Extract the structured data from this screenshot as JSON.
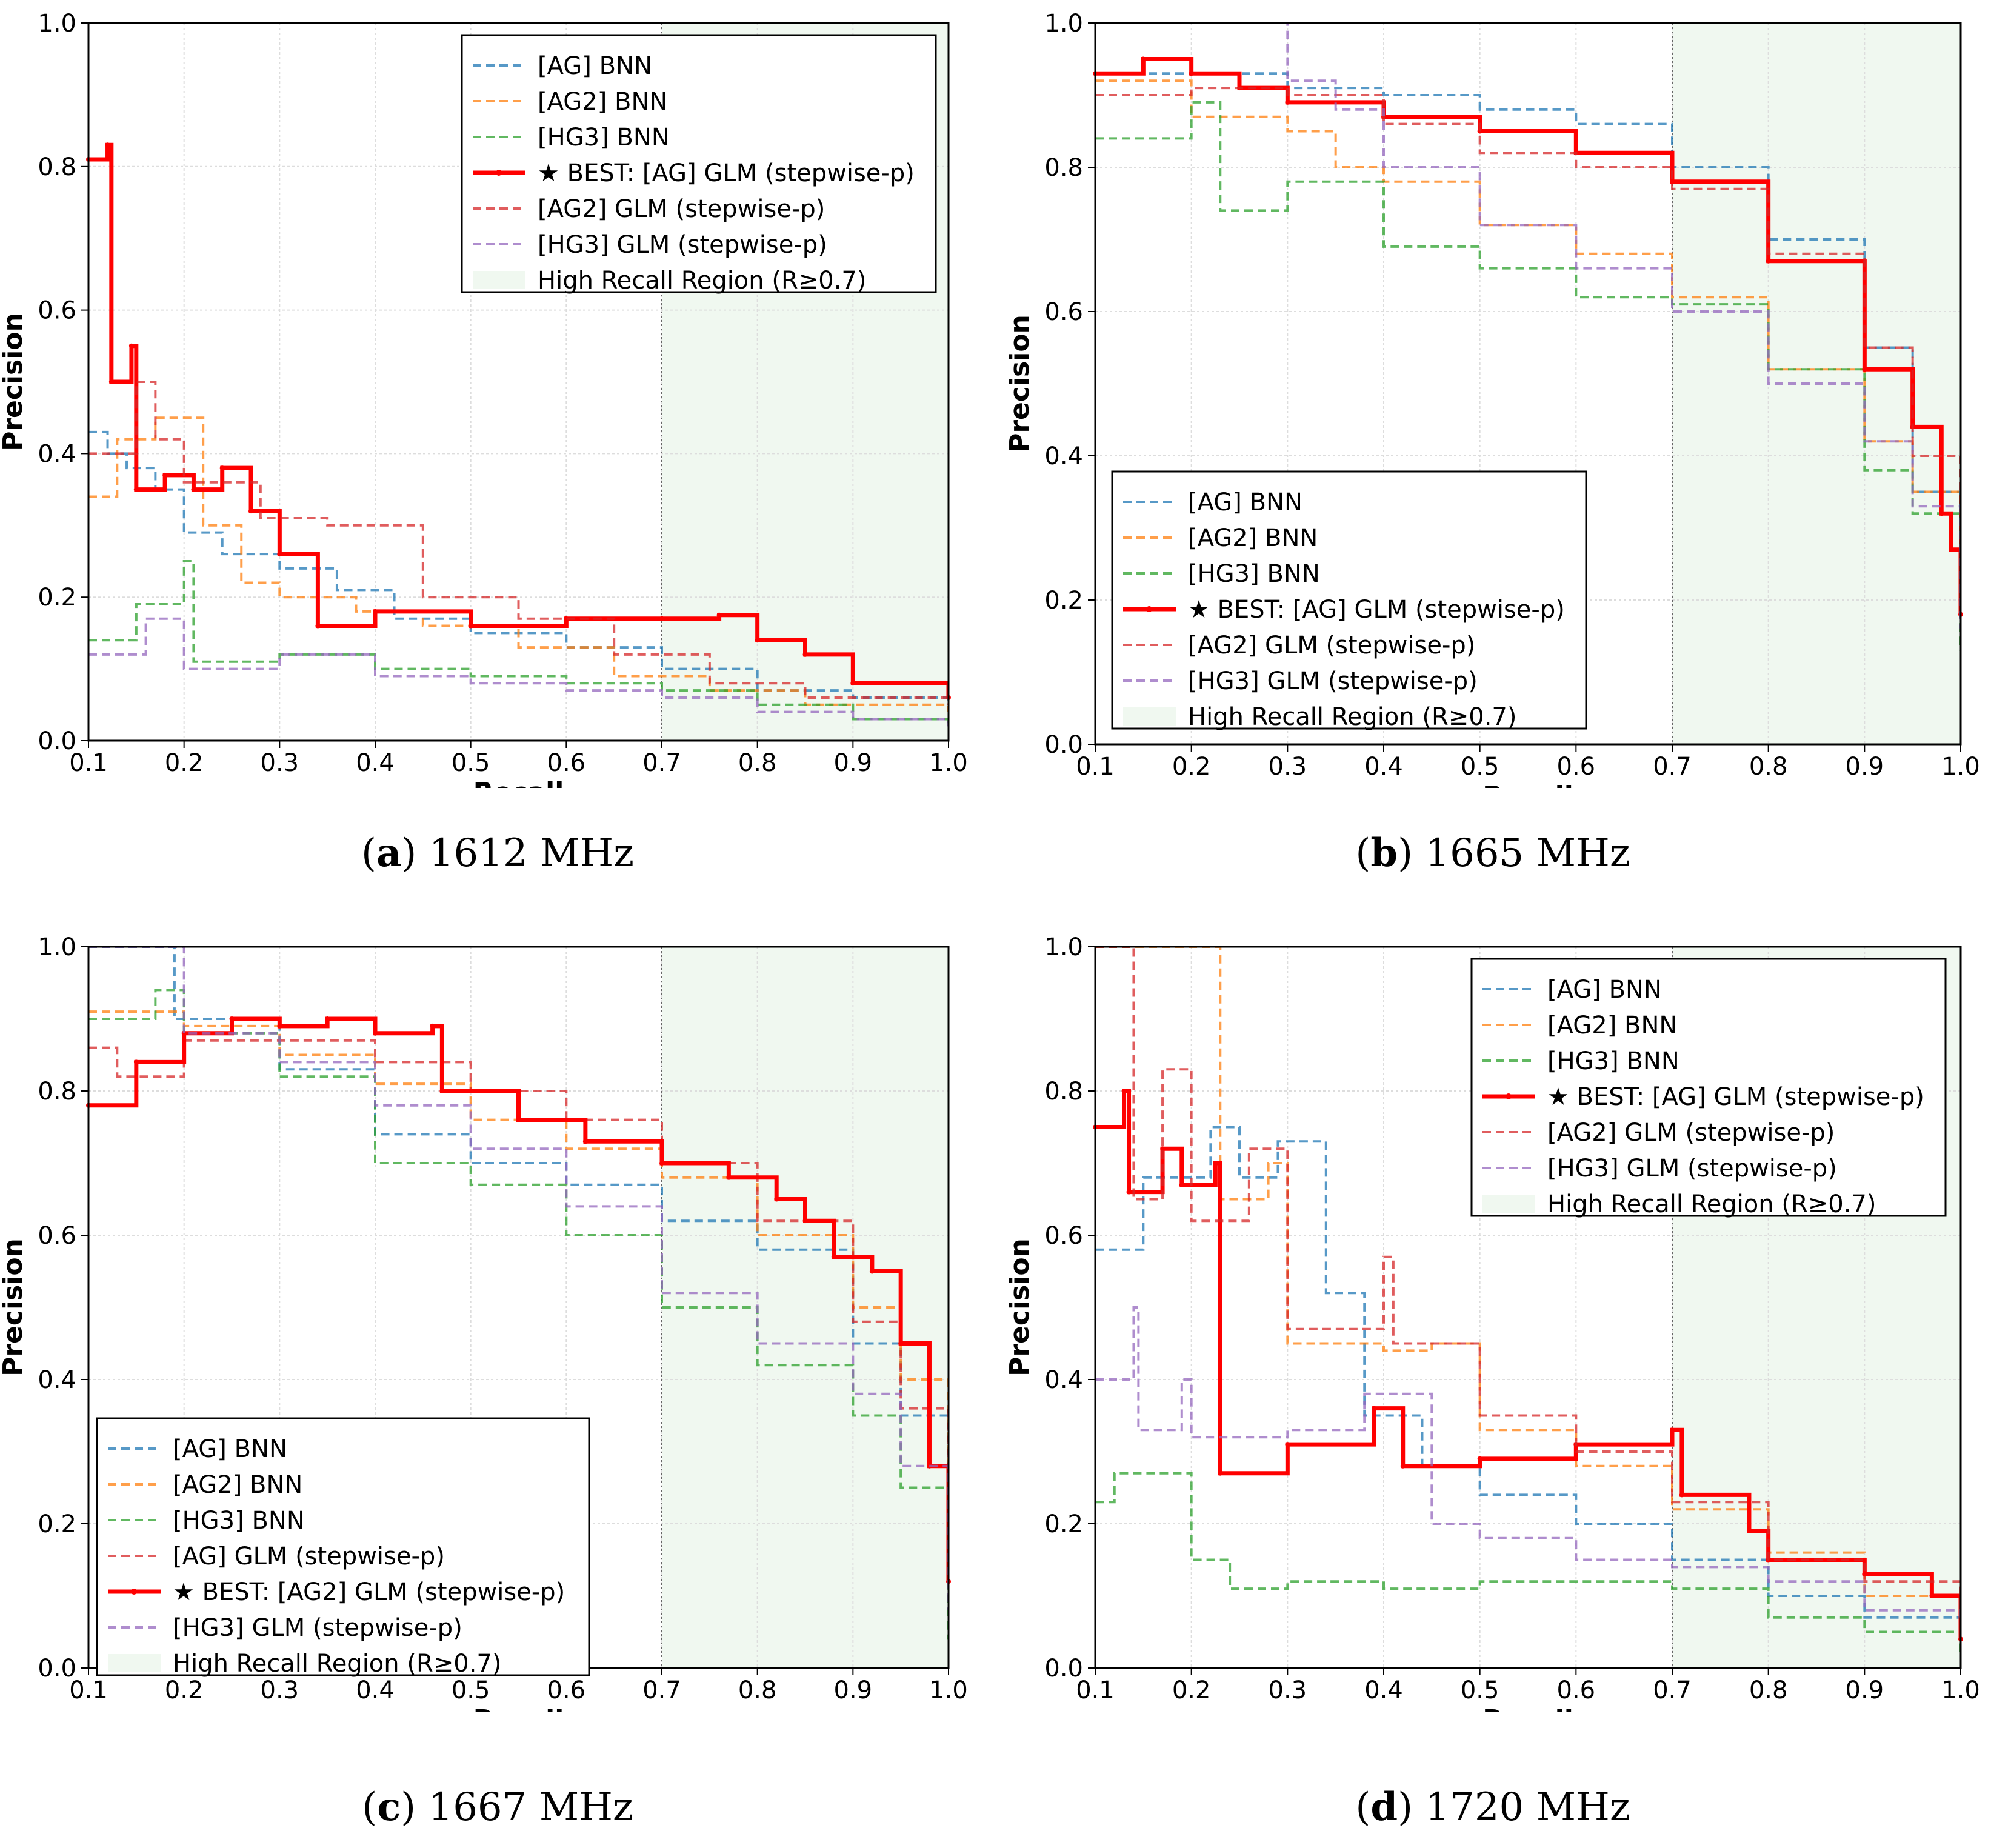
{
  "chart_data": [
    {
      "type": "line",
      "panel": "a",
      "caption_letter": "a",
      "caption_text": "1612 MHz",
      "xlabel": "Recall",
      "ylabel": "Precision",
      "xlim": [
        0.1,
        1.0
      ],
      "ylim": [
        0.0,
        1.0
      ],
      "xticks": [
        "0.1",
        "0.2",
        "0.3",
        "0.4",
        "0.5",
        "0.6",
        "0.7",
        "0.8",
        "0.9",
        "1.0"
      ],
      "yticks": [
        "0.0",
        "0.2",
        "0.4",
        "0.6",
        "0.8",
        "1.0"
      ],
      "grid": true,
      "high_recall_threshold": 0.7,
      "legend_position": "top-right",
      "series": [
        {
          "name": "[AG] BNN",
          "color": "#1f77b4",
          "dashed": true,
          "best": false,
          "x": [
            0.1,
            0.12,
            0.14,
            0.17,
            0.2,
            0.24,
            0.3,
            0.36,
            0.42,
            0.5,
            0.6,
            0.7,
            0.8,
            0.9,
            1.0
          ],
          "y": [
            0.43,
            0.4,
            0.38,
            0.35,
            0.29,
            0.26,
            0.24,
            0.21,
            0.17,
            0.15,
            0.13,
            0.1,
            0.07,
            0.06,
            0.05
          ]
        },
        {
          "name": "[AG2] BNN",
          "color": "#ff7f0e",
          "dashed": true,
          "best": false,
          "x": [
            0.1,
            0.13,
            0.17,
            0.22,
            0.26,
            0.3,
            0.38,
            0.45,
            0.55,
            0.65,
            0.75,
            0.85,
            1.0
          ],
          "y": [
            0.34,
            0.42,
            0.45,
            0.3,
            0.22,
            0.2,
            0.18,
            0.16,
            0.13,
            0.09,
            0.07,
            0.05,
            0.04
          ]
        },
        {
          "name": "[HG3] BNN",
          "color": "#2ca02c",
          "dashed": true,
          "best": false,
          "x": [
            0.1,
            0.15,
            0.2,
            0.21,
            0.3,
            0.4,
            0.5,
            0.6,
            0.7,
            0.8,
            0.9,
            1.0
          ],
          "y": [
            0.14,
            0.19,
            0.25,
            0.11,
            0.12,
            0.1,
            0.09,
            0.08,
            0.07,
            0.05,
            0.03,
            0.02
          ]
        },
        {
          "name": "★ BEST: [AG] GLM (stepwise-p)",
          "color": "#ff0000",
          "dashed": false,
          "best": true,
          "x": [
            0.1,
            0.12,
            0.124,
            0.145,
            0.15,
            0.18,
            0.21,
            0.24,
            0.27,
            0.3,
            0.34,
            0.4,
            0.5,
            0.6,
            0.7,
            0.76,
            0.8,
            0.85,
            0.9,
            1.0
          ],
          "y": [
            0.81,
            0.83,
            0.5,
            0.55,
            0.35,
            0.37,
            0.35,
            0.38,
            0.32,
            0.26,
            0.16,
            0.18,
            0.16,
            0.17,
            0.17,
            0.175,
            0.14,
            0.12,
            0.08,
            0.06
          ]
        },
        {
          "name": "[AG2] GLM (stepwise-p)",
          "color": "#d62728",
          "dashed": true,
          "best": false,
          "x": [
            0.1,
            0.15,
            0.17,
            0.2,
            0.28,
            0.35,
            0.45,
            0.55,
            0.65,
            0.75,
            0.85,
            1.0
          ],
          "y": [
            0.4,
            0.5,
            0.42,
            0.36,
            0.31,
            0.3,
            0.2,
            0.17,
            0.12,
            0.08,
            0.06,
            0.05
          ]
        },
        {
          "name": "[HG3] GLM (stepwise-p)",
          "color": "#9467bd",
          "dashed": true,
          "best": false,
          "x": [
            0.1,
            0.16,
            0.2,
            0.3,
            0.4,
            0.5,
            0.6,
            0.7,
            0.8,
            0.9,
            1.0
          ],
          "y": [
            0.12,
            0.17,
            0.1,
            0.12,
            0.09,
            0.08,
            0.07,
            0.06,
            0.04,
            0.03,
            0.02
          ]
        }
      ]
    },
    {
      "type": "line",
      "panel": "b",
      "caption_letter": "b",
      "caption_text": "1665 MHz",
      "xlabel": "Recall",
      "ylabel": "Precision",
      "xlim": [
        0.1,
        1.0
      ],
      "ylim": [
        0.0,
        1.0
      ],
      "xticks": [
        "0.1",
        "0.2",
        "0.3",
        "0.4",
        "0.5",
        "0.6",
        "0.7",
        "0.8",
        "0.9",
        "1.0"
      ],
      "yticks": [
        "0.0",
        "0.2",
        "0.4",
        "0.6",
        "0.8",
        "1.0"
      ],
      "grid": true,
      "high_recall_threshold": 0.7,
      "legend_position": "lower-left",
      "series": [
        {
          "name": "[AG] BNN",
          "color": "#1f77b4",
          "dashed": true,
          "best": false,
          "x": [
            0.1,
            0.2,
            0.3,
            0.4,
            0.5,
            0.6,
            0.7,
            0.8,
            0.9,
            0.95,
            1.0
          ],
          "y": [
            0.93,
            0.93,
            0.91,
            0.9,
            0.88,
            0.86,
            0.8,
            0.7,
            0.55,
            0.35,
            0.18
          ]
        },
        {
          "name": "[AG2] BNN",
          "color": "#ff7f0e",
          "dashed": true,
          "best": false,
          "x": [
            0.1,
            0.2,
            0.3,
            0.35,
            0.4,
            0.5,
            0.6,
            0.7,
            0.8,
            0.9,
            0.95,
            1.0
          ],
          "y": [
            0.92,
            0.87,
            0.85,
            0.8,
            0.78,
            0.72,
            0.68,
            0.62,
            0.52,
            0.42,
            0.35,
            0.2
          ]
        },
        {
          "name": "[HG3] BNN",
          "color": "#2ca02c",
          "dashed": true,
          "best": false,
          "x": [
            0.1,
            0.2,
            0.23,
            0.3,
            0.4,
            0.5,
            0.6,
            0.7,
            0.8,
            0.9,
            0.95,
            1.0
          ],
          "y": [
            0.84,
            0.89,
            0.74,
            0.78,
            0.69,
            0.66,
            0.62,
            0.61,
            0.52,
            0.38,
            0.32,
            0.13
          ]
        },
        {
          "name": "★ BEST: [AG] GLM (stepwise-p)",
          "color": "#ff0000",
          "dashed": false,
          "best": true,
          "x": [
            0.1,
            0.15,
            0.2,
            0.25,
            0.3,
            0.4,
            0.5,
            0.6,
            0.7,
            0.8,
            0.9,
            0.95,
            0.98,
            0.99,
            1.0
          ],
          "y": [
            0.93,
            0.95,
            0.93,
            0.91,
            0.89,
            0.87,
            0.85,
            0.82,
            0.78,
            0.67,
            0.52,
            0.44,
            0.32,
            0.27,
            0.18
          ]
        },
        {
          "name": "[AG2] GLM (stepwise-p)",
          "color": "#d62728",
          "dashed": true,
          "best": false,
          "x": [
            0.1,
            0.2,
            0.3,
            0.4,
            0.5,
            0.6,
            0.7,
            0.8,
            0.9,
            0.95,
            1.0
          ],
          "y": [
            0.9,
            0.91,
            0.9,
            0.86,
            0.82,
            0.8,
            0.77,
            0.68,
            0.55,
            0.4,
            0.2
          ]
        },
        {
          "name": "[HG3] GLM (stepwise-p)",
          "color": "#9467bd",
          "dashed": true,
          "best": false,
          "x": [
            0.1,
            0.15,
            0.2,
            0.3,
            0.35,
            0.4,
            0.5,
            0.6,
            0.7,
            0.8,
            0.9,
            0.95,
            1.0
          ],
          "y": [
            1.0,
            1.0,
            1.0,
            0.92,
            0.88,
            0.8,
            0.72,
            0.66,
            0.6,
            0.5,
            0.42,
            0.33,
            0.16
          ]
        }
      ]
    },
    {
      "type": "line",
      "panel": "c",
      "caption_letter": "c",
      "caption_text": "1667 MHz",
      "xlabel": "Recall",
      "ylabel": "Precision",
      "xlim": [
        0.1,
        1.0
      ],
      "ylim": [
        0.0,
        1.0
      ],
      "xticks": [
        "0.1",
        "0.2",
        "0.3",
        "0.4",
        "0.5",
        "0.6",
        "0.7",
        "0.8",
        "0.9",
        "1.0"
      ],
      "yticks": [
        "0.0",
        "0.2",
        "0.4",
        "0.6",
        "0.8",
        "1.0"
      ],
      "grid": true,
      "high_recall_threshold": 0.7,
      "legend_position": "lower-left",
      "series": [
        {
          "name": "[AG] BNN",
          "color": "#1f77b4",
          "dashed": true,
          "best": false,
          "x": [
            0.1,
            0.18,
            0.19,
            0.3,
            0.4,
            0.5,
            0.6,
            0.7,
            0.8,
            0.9,
            0.95,
            1.0
          ],
          "y": [
            1.0,
            1.0,
            0.9,
            0.83,
            0.74,
            0.7,
            0.67,
            0.62,
            0.58,
            0.45,
            0.35,
            0.15
          ]
        },
        {
          "name": "[AG2] BNN",
          "color": "#ff7f0e",
          "dashed": true,
          "best": false,
          "x": [
            0.1,
            0.2,
            0.3,
            0.4,
            0.5,
            0.6,
            0.7,
            0.8,
            0.9,
            0.95,
            1.0
          ],
          "y": [
            0.91,
            0.89,
            0.85,
            0.81,
            0.76,
            0.72,
            0.68,
            0.6,
            0.5,
            0.4,
            0.2
          ]
        },
        {
          "name": "[HG3] BNN",
          "color": "#2ca02c",
          "dashed": true,
          "best": false,
          "x": [
            0.1,
            0.17,
            0.2,
            0.3,
            0.4,
            0.5,
            0.6,
            0.7,
            0.8,
            0.9,
            0.95,
            1.0
          ],
          "y": [
            0.9,
            0.94,
            0.88,
            0.82,
            0.7,
            0.67,
            0.6,
            0.5,
            0.42,
            0.35,
            0.25,
            0.04
          ]
        },
        {
          "name": "[AG] GLM (stepwise-p)",
          "color": "#d62728",
          "dashed": true,
          "best": false,
          "x": [
            0.1,
            0.13,
            0.2,
            0.3,
            0.4,
            0.5,
            0.6,
            0.7,
            0.8,
            0.9,
            0.95,
            1.0
          ],
          "y": [
            0.86,
            0.82,
            0.87,
            0.87,
            0.84,
            0.8,
            0.76,
            0.7,
            0.62,
            0.48,
            0.36,
            0.2
          ]
        },
        {
          "name": "★ BEST: [AG2] GLM (stepwise-p)",
          "color": "#ff0000",
          "dashed": false,
          "best": true,
          "x": [
            0.1,
            0.15,
            0.2,
            0.25,
            0.3,
            0.35,
            0.4,
            0.46,
            0.47,
            0.55,
            0.62,
            0.7,
            0.77,
            0.82,
            0.85,
            0.88,
            0.92,
            0.95,
            0.98,
            1.0
          ],
          "y": [
            0.78,
            0.84,
            0.88,
            0.9,
            0.89,
            0.9,
            0.88,
            0.89,
            0.8,
            0.76,
            0.73,
            0.7,
            0.68,
            0.65,
            0.62,
            0.57,
            0.55,
            0.45,
            0.28,
            0.12
          ]
        },
        {
          "name": "[HG3] GLM (stepwise-p)",
          "color": "#9467bd",
          "dashed": true,
          "best": false,
          "x": [
            0.1,
            0.19,
            0.2,
            0.3,
            0.4,
            0.5,
            0.6,
            0.7,
            0.8,
            0.9,
            0.95,
            1.0
          ],
          "y": [
            1.0,
            1.0,
            0.88,
            0.84,
            0.78,
            0.72,
            0.64,
            0.52,
            0.45,
            0.38,
            0.28,
            0.08
          ]
        }
      ]
    },
    {
      "type": "line",
      "panel": "d",
      "caption_letter": "d",
      "caption_text": "1720 MHz",
      "xlabel": "Recall",
      "ylabel": "Precision",
      "xlim": [
        0.1,
        1.0
      ],
      "ylim": [
        0.0,
        1.0
      ],
      "xticks": [
        "0.1",
        "0.2",
        "0.3",
        "0.4",
        "0.5",
        "0.6",
        "0.7",
        "0.8",
        "0.9",
        "1.0"
      ],
      "yticks": [
        "0.0",
        "0.2",
        "0.4",
        "0.6",
        "0.8",
        "1.0"
      ],
      "grid": true,
      "high_recall_threshold": 0.7,
      "legend_position": "top-right",
      "series": [
        {
          "name": "[AG] BNN",
          "color": "#1f77b4",
          "dashed": true,
          "best": false,
          "x": [
            0.1,
            0.15,
            0.22,
            0.25,
            0.29,
            0.34,
            0.38,
            0.44,
            0.5,
            0.6,
            0.7,
            0.8,
            0.9,
            1.0
          ],
          "y": [
            0.58,
            0.68,
            0.75,
            0.68,
            0.73,
            0.52,
            0.35,
            0.28,
            0.24,
            0.2,
            0.15,
            0.1,
            0.07,
            0.05
          ]
        },
        {
          "name": "[AG2] BNN",
          "color": "#ff7f0e",
          "dashed": true,
          "best": false,
          "x": [
            0.1,
            0.12,
            0.22,
            0.23,
            0.28,
            0.3,
            0.4,
            0.45,
            0.5,
            0.6,
            0.7,
            0.8,
            0.9,
            1.0
          ],
          "y": [
            1.0,
            1.0,
            1.0,
            0.65,
            0.7,
            0.45,
            0.44,
            0.45,
            0.33,
            0.28,
            0.22,
            0.16,
            0.1,
            0.07
          ]
        },
        {
          "name": "[HG3] BNN",
          "color": "#2ca02c",
          "dashed": true,
          "best": false,
          "x": [
            0.1,
            0.12,
            0.2,
            0.24,
            0.3,
            0.4,
            0.5,
            0.6,
            0.7,
            0.8,
            0.9,
            1.0
          ],
          "y": [
            0.23,
            0.27,
            0.15,
            0.11,
            0.12,
            0.11,
            0.12,
            0.12,
            0.11,
            0.07,
            0.05,
            0.02
          ]
        },
        {
          "name": "★ BEST: [AG] GLM (stepwise-p)",
          "color": "#ff0000",
          "dashed": false,
          "best": true,
          "x": [
            0.1,
            0.13,
            0.135,
            0.17,
            0.19,
            0.225,
            0.23,
            0.3,
            0.39,
            0.42,
            0.5,
            0.6,
            0.7,
            0.71,
            0.78,
            0.8,
            0.9,
            0.97,
            1.0
          ],
          "y": [
            0.75,
            0.8,
            0.66,
            0.72,
            0.67,
            0.7,
            0.27,
            0.31,
            0.36,
            0.28,
            0.29,
            0.31,
            0.33,
            0.24,
            0.19,
            0.15,
            0.13,
            0.1,
            0.04
          ]
        },
        {
          "name": "[AG2] GLM (stepwise-p)",
          "color": "#d62728",
          "dashed": true,
          "best": false,
          "x": [
            0.1,
            0.13,
            0.14,
            0.17,
            0.2,
            0.26,
            0.3,
            0.4,
            0.41,
            0.5,
            0.6,
            0.7,
            0.8,
            0.9,
            1.0
          ],
          "y": [
            1.0,
            1.0,
            0.65,
            0.83,
            0.62,
            0.72,
            0.47,
            0.57,
            0.45,
            0.35,
            0.3,
            0.23,
            0.15,
            0.12,
            0.07
          ]
        },
        {
          "name": "[HG3] GLM (stepwise-p)",
          "color": "#9467bd",
          "dashed": true,
          "best": false,
          "x": [
            0.1,
            0.14,
            0.145,
            0.19,
            0.2,
            0.3,
            0.38,
            0.45,
            0.5,
            0.6,
            0.7,
            0.8,
            0.9,
            1.0
          ],
          "y": [
            0.4,
            0.5,
            0.33,
            0.4,
            0.32,
            0.33,
            0.38,
            0.2,
            0.18,
            0.15,
            0.14,
            0.12,
            0.08,
            0.07
          ]
        }
      ]
    }
  ],
  "legend_extra": "High Recall Region (R≥0.7)"
}
